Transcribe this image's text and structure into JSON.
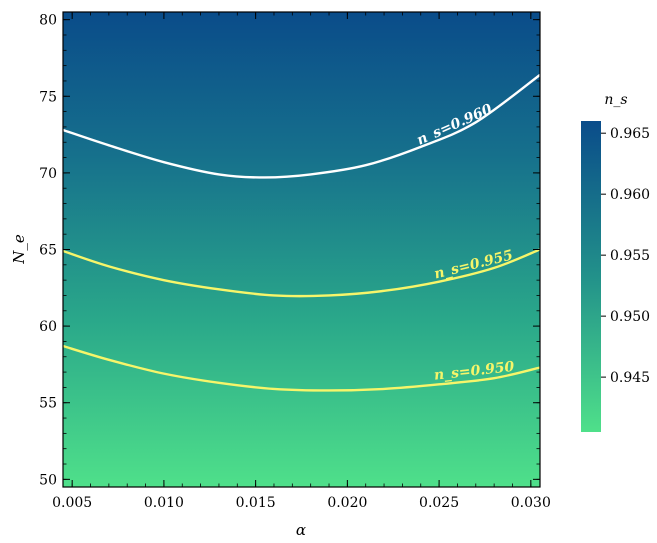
{
  "chart_data": {
    "type": "heatmap",
    "title": "",
    "xlabel": "α",
    "ylabel": "N_e",
    "xlim": [
      0.0045,
      0.0305
    ],
    "ylim": [
      49.5,
      80.5
    ],
    "x_ticks": [
      0.005,
      0.01,
      0.015,
      0.02,
      0.025,
      0.03
    ],
    "x_tick_labels": [
      "0.005",
      "0.010",
      "0.015",
      "0.020",
      "0.025",
      "0.030"
    ],
    "y_ticks": [
      50,
      55,
      60,
      65,
      70,
      75,
      80
    ],
    "y_tick_labels": [
      "50",
      "55",
      "60",
      "65",
      "70",
      "75",
      "80"
    ],
    "colorbar": {
      "label": "n_s",
      "range": [
        0.9405,
        0.966
      ],
      "ticks": [
        0.945,
        0.95,
        0.955,
        0.96,
        0.965
      ],
      "tick_labels": [
        "0.945",
        "0.950",
        "0.955",
        "0.960",
        "0.965"
      ],
      "color_low": "#4fe08a",
      "color_high": "#0a4c8a"
    },
    "contours": [
      {
        "label": "n_s=0.960",
        "value": 0.96,
        "color": "#ffffff",
        "label_color": "#ffffff",
        "x": [
          0.0045,
          0.007,
          0.01,
          0.013,
          0.0155,
          0.018,
          0.021,
          0.024,
          0.027,
          0.0305
        ],
        "y": [
          72.8,
          71.8,
          70.7,
          69.9,
          69.7,
          69.9,
          70.5,
          71.7,
          73.3,
          76.4
        ]
      },
      {
        "label": "n_s=0.955",
        "value": 0.955,
        "color": "#f6f56a",
        "label_color": "#f6f56a",
        "x": [
          0.0045,
          0.007,
          0.01,
          0.013,
          0.016,
          0.019,
          0.022,
          0.025,
          0.028,
          0.0305
        ],
        "y": [
          64.9,
          63.9,
          63.0,
          62.4,
          62.0,
          62.0,
          62.3,
          62.9,
          63.8,
          65.0
        ]
      },
      {
        "label": "n_s=0.950",
        "value": 0.95,
        "color": "#f6f56a",
        "label_color": "#f6f56a",
        "x": [
          0.0045,
          0.007,
          0.01,
          0.013,
          0.016,
          0.019,
          0.022,
          0.025,
          0.028,
          0.0305
        ],
        "y": [
          58.7,
          57.8,
          56.9,
          56.3,
          55.9,
          55.8,
          55.9,
          56.2,
          56.6,
          57.3
        ]
      }
    ],
    "grid": false,
    "legend": "colorbar-right"
  }
}
